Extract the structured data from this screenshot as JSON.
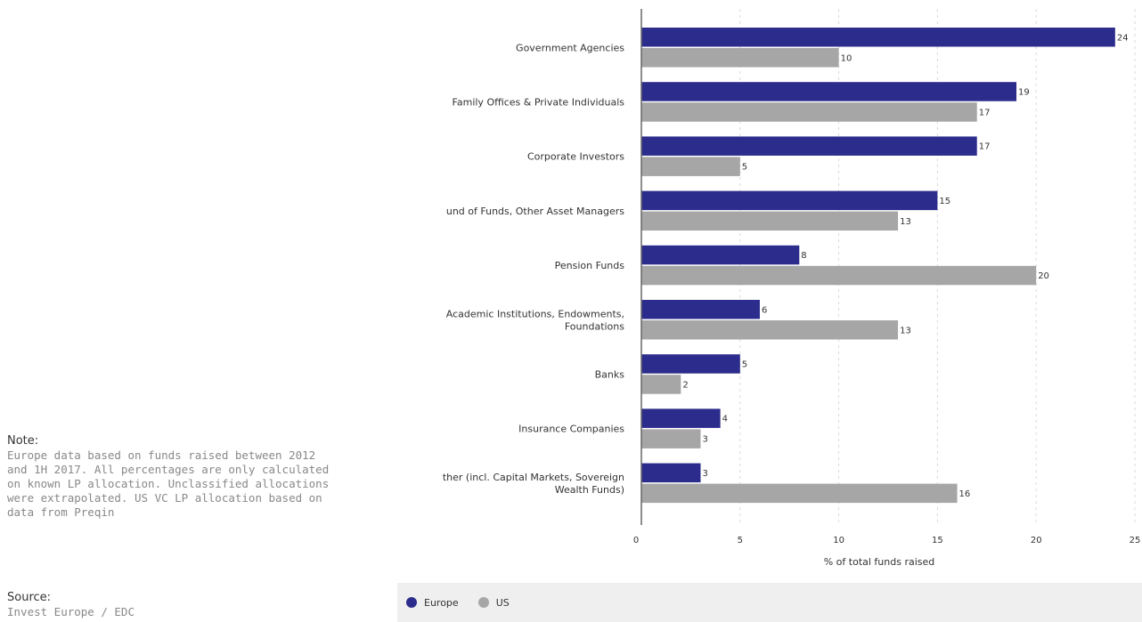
{
  "note": {
    "heading": "Note:",
    "text": "Europe data based on funds raised between 2012 and 1H 2017. All percentages are only calculated on known LP allocation. Unclassified allocations were extrapolated. US VC LP allocation based on data from Preqin"
  },
  "source": {
    "heading": "Source:",
    "text": "Invest Europe / EDC"
  },
  "colors": {
    "europe": "#2c2c8c",
    "us": "#a6a6a6"
  },
  "chart_data": {
    "type": "bar",
    "orientation": "horizontal",
    "categories": [
      [
        "Government Agencies"
      ],
      [
        "Family Offices & Private Individuals"
      ],
      [
        "Corporate Investors"
      ],
      [
        "und of Funds, Other Asset Managers"
      ],
      [
        "Pension Funds"
      ],
      [
        "Academic Institutions, Endowments,",
        "Foundations"
      ],
      [
        "Banks"
      ],
      [
        "Insurance Companies"
      ],
      [
        "ther (incl. Capital Markets, Sovereign",
        "Wealth Funds)"
      ]
    ],
    "series": [
      {
        "name": "Europe",
        "values": [
          24,
          19,
          17,
          15,
          8,
          6,
          5,
          4,
          3
        ]
      },
      {
        "name": "US",
        "values": [
          10,
          17,
          5,
          13,
          20,
          13,
          2,
          3,
          16
        ]
      }
    ],
    "xlabel": "% of total funds raised",
    "xlim": [
      0,
      25
    ],
    "xticks": [
      0,
      5,
      10,
      15,
      20,
      25
    ],
    "grid": true,
    "legend_position": "bottom"
  }
}
